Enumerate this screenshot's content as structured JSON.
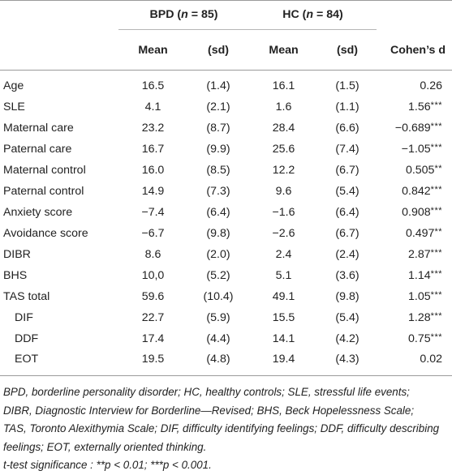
{
  "table": {
    "group_bpd": {
      "prefix": "BPD (",
      "n": "n",
      "suffix": " = 85)"
    },
    "group_hc": {
      "prefix": "HC (",
      "n": "n",
      "suffix": " = 84)"
    },
    "subheaders": {
      "mean_bpd": "Mean",
      "sd_bpd": "(sd)",
      "mean_hc": "Mean",
      "sd_hc": "(sd)",
      "cohens_d": "Cohen’s d"
    },
    "rows": [
      {
        "label": "Age",
        "bpd_mean": "16.5",
        "bpd_sd": "(1.4)",
        "hc_mean": "16.1",
        "hc_sd": "(1.5)",
        "d": "0.26",
        "sig": ""
      },
      {
        "label": "SLE",
        "bpd_mean": "4.1",
        "bpd_sd": "(2.1)",
        "hc_mean": "1.6",
        "hc_sd": "(1.1)",
        "d": "1.56",
        "sig": "***"
      },
      {
        "label": "Maternal care",
        "bpd_mean": "23.2",
        "bpd_sd": "(8.7)",
        "hc_mean": "28.4",
        "hc_sd": "(6.6)",
        "d": "−0.689",
        "sig": "***"
      },
      {
        "label": "Paternal care",
        "bpd_mean": "16.7",
        "bpd_sd": "(9.9)",
        "hc_mean": "25.6",
        "hc_sd": "(7.4)",
        "d": "−1.05",
        "sig": "***"
      },
      {
        "label": "Maternal control",
        "bpd_mean": "16.0",
        "bpd_sd": "(8.5)",
        "hc_mean": "12.2",
        "hc_sd": "(6.7)",
        "d": "0.505",
        "sig": "**"
      },
      {
        "label": "Paternal control",
        "bpd_mean": "14.9",
        "bpd_sd": "(7.3)",
        "hc_mean": "9.6",
        "hc_sd": "(5.4)",
        "d": "0.842",
        "sig": "***"
      },
      {
        "label": "Anxiety score",
        "bpd_mean": "−7.4",
        "bpd_sd": "(6.4)",
        "hc_mean": "−1.6",
        "hc_sd": "(6.4)",
        "d": "0.908",
        "sig": "***"
      },
      {
        "label": "Avoidance score",
        "bpd_mean": "−6.7",
        "bpd_sd": "(9.8)",
        "hc_mean": "−2.6",
        "hc_sd": "(6.7)",
        "d": "0.497",
        "sig": "**"
      },
      {
        "label": "DIBR",
        "bpd_mean": "8.6",
        "bpd_sd": "(2.0)",
        "hc_mean": "2.4",
        "hc_sd": "(2.4)",
        "d": "2.87",
        "sig": "***"
      },
      {
        "label": "BHS",
        "bpd_mean": "10,0",
        "bpd_sd": "(5.2)",
        "hc_mean": "5.1",
        "hc_sd": "(3.6)",
        "d": "1.14",
        "sig": "***"
      },
      {
        "label": "TAS total",
        "bpd_mean": "59.6",
        "bpd_sd": "(10.4)",
        "hc_mean": "49.1",
        "hc_sd": "(9.8)",
        "d": "1.05",
        "sig": "***"
      },
      {
        "label": "DIF",
        "bpd_mean": "22.7",
        "bpd_sd": "(5.9)",
        "hc_mean": "15.5",
        "hc_sd": "(5.4)",
        "d": "1.28",
        "sig": "***"
      },
      {
        "label": "DDF",
        "bpd_mean": "17.4",
        "bpd_sd": "(4.4)",
        "hc_mean": "14.1",
        "hc_sd": "(4.2)",
        "d": "0.75",
        "sig": "***"
      },
      {
        "label": "EOT",
        "bpd_mean": "19.5",
        "bpd_sd": "(4.8)",
        "hc_mean": "19.4",
        "hc_sd": "(4.3)",
        "d": "0.02",
        "sig": ""
      }
    ]
  },
  "footnote": {
    "abbrev_lines": [
      "BPD, borderline personality disorder; HC, healthy controls; SLE, stressful life events;",
      "DIBR, Diagnostic Interview for Borderline—Revised; BHS, Beck Hopelessness Scale;",
      "TAS, Toronto Alexithymia Scale; DIF, difficulty identifying feelings; DDF, difficulty describing",
      "feelings; EOT, externally oriented thinking."
    ],
    "significance": "t-test significance : **p < 0.01; ***p < 0.001."
  }
}
